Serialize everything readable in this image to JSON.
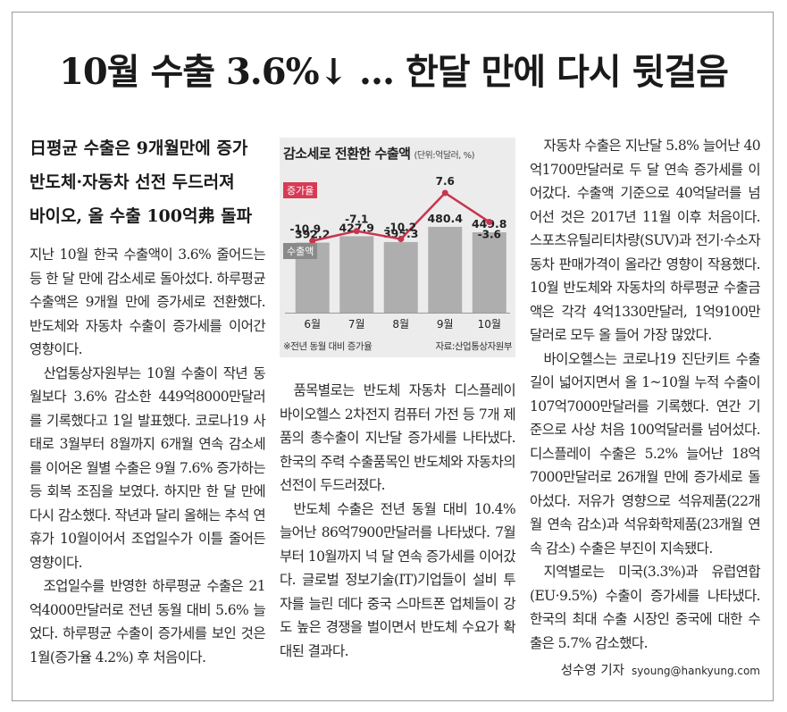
{
  "headline": "10월 수출 3.6%↓ … 한달 만에 다시 뒷걸음",
  "subheads": [
    "日평균 수출은 9개월만에 증가",
    "반도체·자동차 선전 두드러져",
    "바이오, 올 수출 100억弗 돌파"
  ],
  "col1": [
    "지난 10월 한국 수출액이 3.6% 줄어드는 등 한 달 만에 감소세로 돌아섰다. 하루평균 수출액은 9개월 만에 증가세로 전환했다. 반도체와 자동차 수출이 증가세를 이어간 영향이다.",
    "산업통상자원부는 10월 수출이 작년 동월보다 3.6% 감소한 449억8000만달러를 기록했다고 1일 발표했다. 코로나19 사태로 3월부터 8월까지 6개월 연속 감소세를 이어온 월별 수출은 9월 7.6% 증가하는 등 회복 조짐을 보였다. 하지만 한 달 만에 다시 감소했다. 작년과 달리 올해는 추석 연휴가 10월이어서 조업일수가 이틀 줄어든 영향이다.",
    "조업일수를 반영한 하루평균 수출은 21억4000만달러로 전년 동월 대비 5.6% 늘었다. 하루평균 수출이 증가세를 보인 것은 1월(증가율 4.2%) 후 처음이다."
  ],
  "col2": [
    "품목별로는 반도체 자동차 디스플레이 바이오헬스 2차전지 컴퓨터 가전 등 7개 제품의 총수출이 지난달 증가세를 나타냈다. 한국의 주력 수출품목인 반도체와 자동차의 선전이 두드러졌다.",
    "반도체 수출은 전년 동월 대비 10.4% 늘어난 86억7900만달러를 나타냈다. 7월부터 10월까지 넉 달 연속 증가세를 이어갔다. 글로벌 정보기술(IT)기업들이 설비 투자를 늘린 데다 중국 스마트폰 업체들이 강도 높은 경쟁을 벌이면서 반도체 수요가 확대된 결과다."
  ],
  "col3": [
    "자동차 수출은 지난달 5.8% 늘어난 40억1700만달러로 두 달 연속 증가세를 이어갔다. 수출액 기준으로 40억달러를 넘어선 것은 2017년 11월 이후 처음이다. 스포츠유틸리티차량(SUV)과 전기·수소자동차 판매가격이 올라간 영향이 작용했다. 10월 반도체와 자동차의 하루평균 수출금액은 각각 4억1330만달러, 1억9100만달러로 모두 올 들어 가장 많았다.",
    "바이오헬스는 코로나19 진단키트 수출길이 넓어지면서 올 1~10월 누적 수출이 107억7000만달러를 기록했다. 연간 기준으로 사상 처음 100억달러를 넘어섰다. 디스플레이 수출은 5.2% 늘어난 18억7000만달러로 26개월 만에 증가세로 돌아섰다. 저유가 영향으로 석유제품(22개월 연속 감소)과 석유화학제품(23개월 연속 감소) 수출은 부진이 지속됐다.",
    "지역별로는 미국(3.3%)과 유럽연합(EU·9.5%) 수출이 증가세를 나타냈다. 한국의 최대 수출 시장인 중국에 대한 수출은 5.7% 감소했다."
  ],
  "byline": {
    "name": "성수영 기자",
    "email": "syoung@hankyung.com"
  },
  "colors": {
    "bar": "#aeaeae",
    "line": "#c8344e",
    "tag_red": "#d83a55",
    "chart_bg": "#ececec"
  },
  "chart_data": {
    "type": "bar",
    "title": "감소세로 전환한 수출액",
    "unit": "(단위:억달러, %)",
    "categories": [
      "6월",
      "7월",
      "8월",
      "9월",
      "10월"
    ],
    "series": [
      {
        "name": "수출액",
        "values": [
          392.2,
          427.9,
          395.3,
          480.4,
          449.8
        ]
      },
      {
        "name": "증가율",
        "type": "line",
        "values": [
          -10.9,
          -7.1,
          -10.2,
          7.6,
          -3.6
        ]
      }
    ],
    "value_labels": {
      "bars": [
        "392.2",
        "427.9",
        "395.3",
        "480.4",
        "449.8"
      ],
      "line": [
        "-10.9",
        "-7.1",
        "-10.2",
        "7.6",
        "-3.6"
      ]
    },
    "note": "※전년 동월 대비 증가율",
    "source": "자료:산업통상자원부",
    "ylim": [
      0,
      500
    ]
  }
}
